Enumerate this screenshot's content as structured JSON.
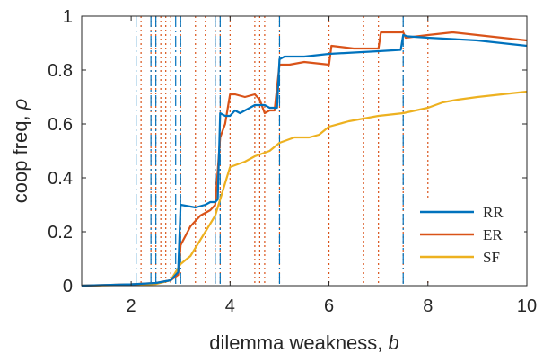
{
  "chart_data": {
    "type": "line",
    "xlabel": "dilemma weakness, ",
    "xlabel_symbol": "b",
    "ylabel": "coop freq, ",
    "ylabel_symbol": "ρ",
    "xlim": [
      1,
      10
    ],
    "ylim": [
      0,
      1
    ],
    "x_ticks": [
      2,
      4,
      6,
      8,
      10
    ],
    "x_tick_labels": [
      "2",
      "4",
      "6",
      "8",
      "10"
    ],
    "y_ticks": [
      0,
      0.2,
      0.4,
      0.6,
      0.8,
      1
    ],
    "y_tick_labels": [
      "0",
      "0.2",
      "0.4",
      "0.6",
      "0.8",
      "1"
    ],
    "grid": false,
    "legend_position": "bottom-right",
    "colors": {
      "RR": "#0072BD",
      "ER": "#D95319",
      "SF": "#EDB120"
    },
    "rr_thresholds": [
      2.1,
      2.4,
      2.5,
      2.9,
      3.0,
      3.7,
      3.8,
      5.0,
      7.5
    ],
    "er_thresholds": [
      2.2,
      2.4,
      2.5,
      2.6,
      2.7,
      2.8,
      3.0,
      3.3,
      3.5,
      3.7,
      3.8,
      4.0,
      4.5,
      4.6,
      4.7,
      5.0,
      6.0,
      6.7,
      7.0,
      7.5,
      8.0
    ],
    "series": [
      {
        "name": "RR",
        "x": [
          1.0,
          2.0,
          2.5,
          2.8,
          2.95,
          3.0,
          3.3,
          3.5,
          3.6,
          3.7,
          3.75,
          3.8,
          3.9,
          4.0,
          4.1,
          4.2,
          4.3,
          4.4,
          4.5,
          4.6,
          4.7,
          4.8,
          4.95,
          5.0,
          5.1,
          5.5,
          6.0,
          6.5,
          7.0,
          7.45,
          7.5,
          7.6,
          8.0,
          8.5,
          9.0,
          9.5,
          10.0
        ],
        "y": [
          0.0,
          0.005,
          0.01,
          0.02,
          0.05,
          0.3,
          0.29,
          0.3,
          0.31,
          0.31,
          0.32,
          0.64,
          0.63,
          0.63,
          0.65,
          0.64,
          0.65,
          0.66,
          0.67,
          0.67,
          0.67,
          0.66,
          0.66,
          0.84,
          0.85,
          0.85,
          0.86,
          0.865,
          0.87,
          0.875,
          0.93,
          0.925,
          0.92,
          0.915,
          0.91,
          0.9,
          0.89
        ]
      },
      {
        "name": "ER",
        "x": [
          1.0,
          2.0,
          2.5,
          2.8,
          2.95,
          3.0,
          3.2,
          3.4,
          3.6,
          3.7,
          3.8,
          3.9,
          4.0,
          4.1,
          4.3,
          4.5,
          4.6,
          4.7,
          4.8,
          4.9,
          5.0,
          5.2,
          5.5,
          6.0,
          6.05,
          6.5,
          7.0,
          7.05,
          7.5,
          7.55,
          8.0,
          8.5,
          9.0,
          9.5,
          10.0
        ],
        "y": [
          0.0,
          0.005,
          0.01,
          0.02,
          0.04,
          0.15,
          0.22,
          0.26,
          0.28,
          0.3,
          0.55,
          0.6,
          0.71,
          0.71,
          0.7,
          0.71,
          0.69,
          0.64,
          0.65,
          0.65,
          0.82,
          0.82,
          0.83,
          0.82,
          0.89,
          0.88,
          0.88,
          0.94,
          0.94,
          0.92,
          0.93,
          0.94,
          0.93,
          0.92,
          0.91
        ]
      },
      {
        "name": "SF",
        "x": [
          1.0,
          2.0,
          2.5,
          2.8,
          3.0,
          3.2,
          3.5,
          3.7,
          3.8,
          3.9,
          4.0,
          4.3,
          4.5,
          4.8,
          5.0,
          5.3,
          5.6,
          5.8,
          6.0,
          6.4,
          7.0,
          7.5,
          8.0,
          8.3,
          8.6,
          9.0,
          9.5,
          10.0
        ],
        "y": [
          0.0,
          0.003,
          0.006,
          0.02,
          0.08,
          0.11,
          0.2,
          0.26,
          0.32,
          0.38,
          0.44,
          0.46,
          0.48,
          0.5,
          0.53,
          0.55,
          0.55,
          0.56,
          0.59,
          0.61,
          0.63,
          0.64,
          0.66,
          0.68,
          0.69,
          0.7,
          0.71,
          0.72
        ]
      }
    ]
  }
}
